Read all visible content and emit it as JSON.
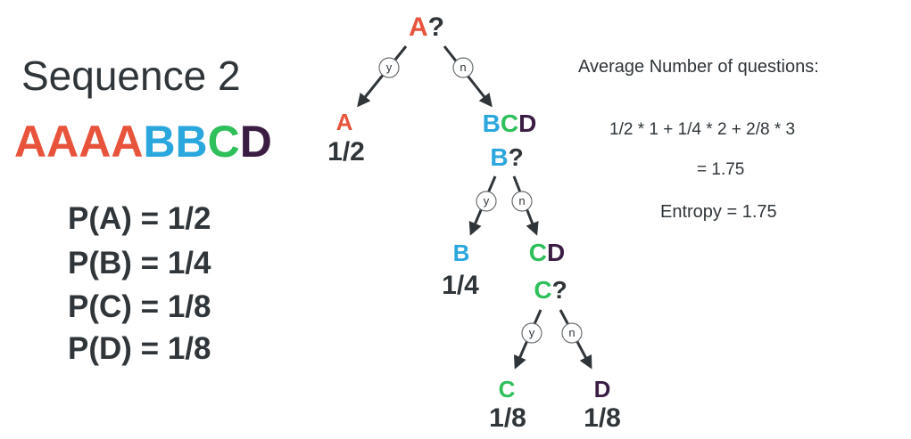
{
  "left": {
    "title": "Sequence 2",
    "sequence": [
      {
        "ch": "A",
        "color": "#e8533b"
      },
      {
        "ch": "A",
        "color": "#e8533b"
      },
      {
        "ch": "A",
        "color": "#e8533b"
      },
      {
        "ch": "A",
        "color": "#e8533b"
      },
      {
        "ch": "B",
        "color": "#2aa7dd"
      },
      {
        "ch": "B",
        "color": "#2aa7dd"
      },
      {
        "ch": "C",
        "color": "#2fbf5b"
      },
      {
        "ch": "D",
        "color": "#3b1d44"
      }
    ],
    "probabilities": [
      "P(A) = 1/2",
      "P(B) = 1/4",
      "P(C) = 1/8",
      "P(D) = 1/8"
    ]
  },
  "right": {
    "avg_label": "Average Number of questions:",
    "formula": "1/2 * 1 + 1/4 * 2 + 2/8 * 3",
    "equals": "= 1.75",
    "entropy": "Entropy = 1.75"
  },
  "colors": {
    "A": "#e8533b",
    "B": "#2aa7dd",
    "C": "#2fbf5b",
    "D": "#3b1d44",
    "dark": "#2f3539"
  },
  "tree": {
    "q1": [
      {
        "t": "A",
        "c": "A"
      },
      {
        "t": "?",
        "c": "dark"
      }
    ],
    "leaf_a_label": [
      {
        "t": "A",
        "c": "A"
      }
    ],
    "leaf_a_prob": "1/2",
    "bcd": [
      {
        "t": "B",
        "c": "B"
      },
      {
        "t": "C",
        "c": "C"
      },
      {
        "t": "D",
        "c": "D"
      }
    ],
    "q2": [
      {
        "t": "B",
        "c": "B"
      },
      {
        "t": "?",
        "c": "dark"
      }
    ],
    "leaf_b_label": [
      {
        "t": "B",
        "c": "B"
      }
    ],
    "leaf_b_prob": "1/4",
    "cd": [
      {
        "t": "C",
        "c": "C"
      },
      {
        "t": "D",
        "c": "D"
      }
    ],
    "q3": [
      {
        "t": "C",
        "c": "C"
      },
      {
        "t": "?",
        "c": "dark"
      }
    ],
    "leaf_c_label": [
      {
        "t": "C",
        "c": "C"
      }
    ],
    "leaf_c_prob": "1/8",
    "leaf_d_label": [
      {
        "t": "D",
        "c": "D"
      }
    ],
    "leaf_d_prob": "1/8",
    "yes": "y",
    "no": "n"
  }
}
